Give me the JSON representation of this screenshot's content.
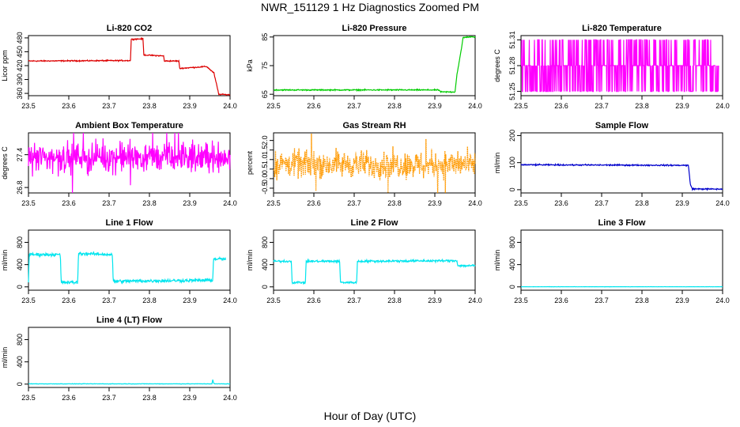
{
  "figure": {
    "title": "NWR_151129  1 Hz Diagnostics Zoomed PM",
    "xlabel": "Hour of Day (UTC)"
  },
  "chart_data": [
    {
      "type": "line",
      "title": "Li-820 CO2",
      "ylabel": "Licor ppm",
      "color": "#dd0000",
      "xlim": [
        23.5,
        24.0
      ],
      "xticks": [
        23.5,
        23.6,
        23.7,
        23.8,
        23.9,
        24.0
      ],
      "xtick_labels": [
        "23.5",
        "23.6",
        "23.7",
        "23.8",
        "23.9",
        "24.0"
      ],
      "ylim": [
        355,
        485
      ],
      "yticks": [
        360,
        390,
        420,
        450,
        480
      ],
      "ytick_labels": [
        "360",
        "390",
        "420",
        "450",
        "480"
      ],
      "noise": 0.6,
      "x": [
        23.5,
        23.753,
        23.755,
        23.784,
        23.786,
        23.835,
        23.837,
        23.873,
        23.875,
        23.94,
        23.942,
        23.96,
        23.972,
        24.0
      ],
      "y": [
        430,
        431,
        477,
        478,
        443,
        441,
        430,
        430,
        414,
        418,
        418,
        404,
        358,
        357
      ]
    },
    {
      "type": "line",
      "title": "Li-820 Pressure",
      "ylabel": "kPa",
      "color": "#00cc00",
      "xlim": [
        23.5,
        24.0
      ],
      "xticks": [
        23.5,
        23.6,
        23.7,
        23.8,
        23.9,
        24.0
      ],
      "xtick_labels": [
        "23.5",
        "23.6",
        "23.7",
        "23.8",
        "23.9",
        "24.0"
      ],
      "ylim": [
        64.5,
        85.5
      ],
      "yticks": [
        65,
        75,
        85
      ],
      "ytick_labels": [
        "65",
        "75",
        "85"
      ],
      "noise": 0.1,
      "x": [
        23.5,
        23.91,
        23.915,
        23.95,
        23.955,
        23.965,
        23.97,
        23.98,
        24.0
      ],
      "y": [
        66.5,
        66.5,
        65.8,
        65.8,
        72,
        80,
        84.8,
        85,
        85
      ]
    },
    {
      "type": "line",
      "title": "Li-820 Temperature",
      "ylabel": "degrees C",
      "color": "#ff00ff",
      "xlim": [
        23.5,
        24.0
      ],
      "xticks": [
        23.5,
        23.6,
        23.7,
        23.8,
        23.9,
        24.0
      ],
      "xtick_labels": [
        "23.5",
        "23.6",
        "23.7",
        "23.8",
        "23.9",
        "24.0"
      ],
      "ylim": [
        51.245,
        51.315
      ],
      "yticks": [
        51.25,
        51.28,
        51.31
      ],
      "ytick_labels": [
        "51.25",
        "51.28",
        "51.31"
      ],
      "render": "levels",
      "levels": [
        51.25,
        51.28,
        51.31
      ],
      "x": [
        23.5,
        23.99
      ],
      "y": [
        51.28,
        51.28
      ]
    },
    {
      "type": "line",
      "title": "Ambient Box Temperature",
      "ylabel": "degrees C",
      "color": "#ff00ff",
      "xlim": [
        23.5,
        24.0
      ],
      "xticks": [
        23.5,
        23.6,
        23.7,
        23.8,
        23.9,
        24.0
      ],
      "xtick_labels": [
        "23.5",
        "23.6",
        "23.7",
        "23.8",
        "23.9",
        "24.0"
      ],
      "ylim": [
        26.7,
        27.8
      ],
      "yticks": [
        26.8,
        27.4
      ],
      "ytick_labels": [
        "26.8",
        "27.4"
      ],
      "render": "noise",
      "noise": 0.13,
      "x": [
        23.5,
        24.0
      ],
      "y": [
        27.35,
        27.35
      ]
    },
    {
      "type": "scatter",
      "title": "Gas Stream RH",
      "ylabel": "percent",
      "color": "#ff9900",
      "xlim": [
        23.5,
        24.0
      ],
      "xticks": [
        23.5,
        23.6,
        23.7,
        23.8,
        23.9,
        24.0
      ],
      "xtick_labels": [
        "23.5",
        "23.6",
        "23.7",
        "23.8",
        "23.9",
        "24.0"
      ],
      "ylim": [
        -0.75,
        2.4
      ],
      "yticks": [
        -0.5,
        0.0,
        0.5,
        1.0,
        1.5,
        2.0
      ],
      "ytick_labels": [
        "-0.5",
        "0.0",
        "0.5",
        "1.0",
        "1.5",
        "2.0"
      ],
      "render": "noise",
      "noise": 0.35,
      "x": [
        23.5,
        24.0
      ],
      "y": [
        0.75,
        0.75
      ]
    },
    {
      "type": "line",
      "title": "Sample Flow",
      "ylabel": "ml/min",
      "color": "#0000cc",
      "xlim": [
        23.5,
        24.0
      ],
      "xticks": [
        23.5,
        23.6,
        23.7,
        23.8,
        23.9,
        24.0
      ],
      "xtick_labels": [
        "23.5",
        "23.6",
        "23.7",
        "23.8",
        "23.9",
        "24.0"
      ],
      "ylim": [
        -12,
        210
      ],
      "yticks": [
        0,
        100,
        200
      ],
      "ytick_labels": [
        "0",
        "100",
        "200"
      ],
      "noise": 1.2,
      "x": [
        23.5,
        23.915,
        23.92,
        23.925,
        24.0
      ],
      "y": [
        92,
        90,
        20,
        3,
        2
      ]
    },
    {
      "type": "line",
      "title": "Line 1 Flow",
      "ylabel": "ml/min",
      "color": "#00e5ee",
      "xlim": [
        23.5,
        24.0
      ],
      "xticks": [
        23.5,
        23.6,
        23.7,
        23.8,
        23.9,
        24.0
      ],
      "xtick_labels": [
        "23.5",
        "23.6",
        "23.7",
        "23.8",
        "23.9",
        "24.0"
      ],
      "ylim": [
        -60,
        1020
      ],
      "yticks": [
        0,
        400,
        800
      ],
      "ytick_labels": [
        "0",
        "400",
        "800"
      ],
      "noise": 14,
      "x": [
        23.5,
        23.502,
        23.579,
        23.581,
        23.622,
        23.624,
        23.708,
        23.71,
        23.957,
        23.959,
        23.99
      ],
      "y": [
        100,
        580,
        580,
        80,
        80,
        600,
        580,
        100,
        120,
        500,
        500
      ]
    },
    {
      "type": "line",
      "title": "Line 2 Flow",
      "ylabel": "ml/min",
      "color": "#00e5ee",
      "xlim": [
        23.5,
        24.0
      ],
      "xticks": [
        23.5,
        23.6,
        23.7,
        23.8,
        23.9,
        24.0
      ],
      "xtick_labels": [
        "23.5",
        "23.6",
        "23.7",
        "23.8",
        "23.9",
        "24.0"
      ],
      "ylim": [
        -60,
        1020
      ],
      "yticks": [
        0,
        400,
        800
      ],
      "ytick_labels": [
        "0",
        "400",
        "800"
      ],
      "noise": 10,
      "x": [
        23.5,
        23.544,
        23.546,
        23.579,
        23.581,
        23.664,
        23.666,
        23.706,
        23.708,
        23.955,
        23.957,
        24.0
      ],
      "y": [
        460,
        460,
        80,
        80,
        460,
        460,
        80,
        80,
        460,
        470,
        380,
        380
      ]
    },
    {
      "type": "line",
      "title": "Line 3 Flow",
      "ylabel": "ml/min",
      "color": "#00e5ee",
      "xlim": [
        23.5,
        24.0
      ],
      "xticks": [
        23.5,
        23.6,
        23.7,
        23.8,
        23.9,
        24.0
      ],
      "xtick_labels": [
        "23.5",
        "23.6",
        "23.7",
        "23.8",
        "23.9",
        "24.0"
      ],
      "ylim": [
        -60,
        1020
      ],
      "yticks": [
        0,
        400,
        800
      ],
      "ytick_labels": [
        "0",
        "400",
        "800"
      ],
      "noise": 1,
      "x": [
        23.5,
        24.0
      ],
      "y": [
        2,
        2
      ]
    },
    {
      "type": "line",
      "title": "Line 4 (LT) Flow",
      "ylabel": "ml/min",
      "color": "#00e5ee",
      "xlim": [
        23.5,
        24.0
      ],
      "xticks": [
        23.5,
        23.6,
        23.7,
        23.8,
        23.9,
        24.0
      ],
      "xtick_labels": [
        "23.5",
        "23.6",
        "23.7",
        "23.8",
        "23.9",
        "24.0"
      ],
      "ylim": [
        -60,
        1020
      ],
      "yticks": [
        0,
        400,
        800
      ],
      "ytick_labels": [
        "0",
        "400",
        "800"
      ],
      "noise": 2,
      "x": [
        23.5,
        23.955,
        23.957,
        23.959,
        23.961,
        24.0
      ],
      "y": [
        5,
        5,
        80,
        20,
        5,
        5
      ]
    }
  ]
}
